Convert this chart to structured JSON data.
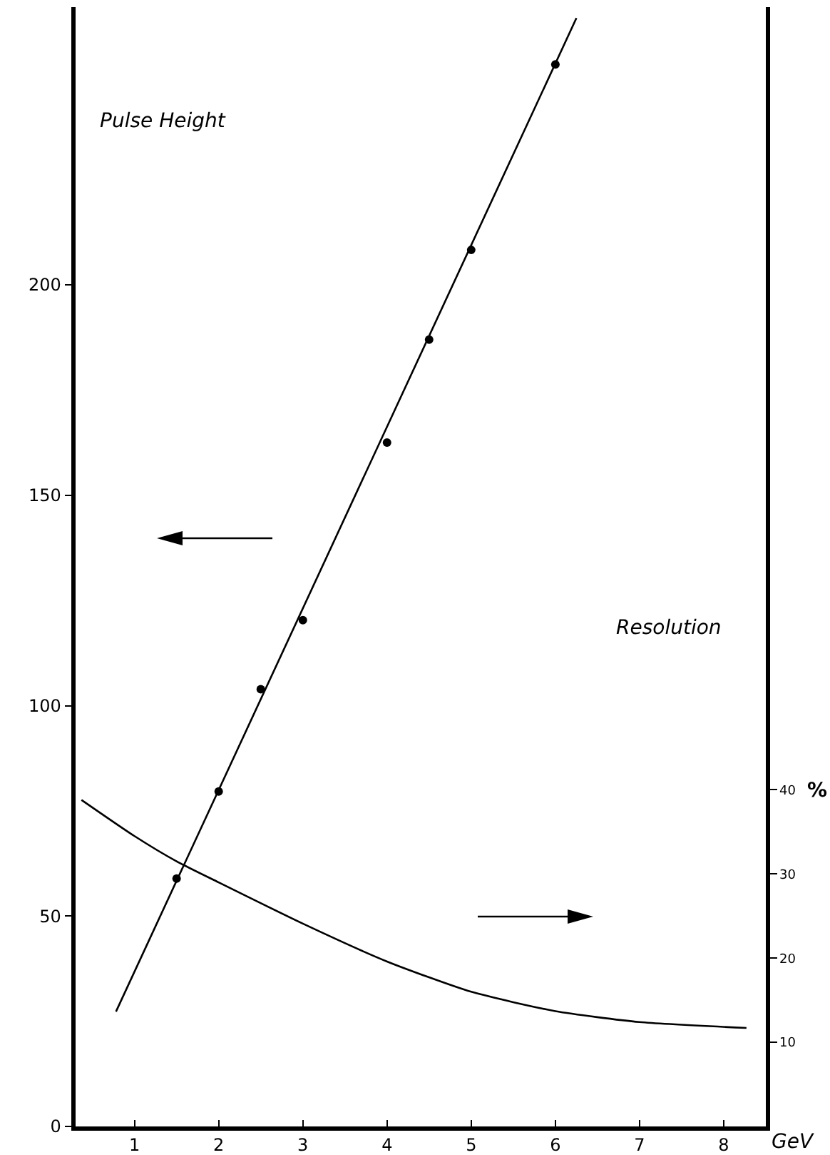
{
  "chart_data": {
    "type": "scatter",
    "xlabel": "GeV",
    "ylabel": "Pulse Height",
    "y2label": "Resolution",
    "annotations": [
      "%"
    ],
    "xlim": [
      0.3,
      8.5
    ],
    "xticks": [
      1,
      2,
      3,
      4,
      5,
      6,
      7,
      8
    ],
    "ylim": [
      0,
      266
    ],
    "yticks": [
      0,
      50,
      100,
      150,
      200
    ],
    "y2lim": [
      0,
      133
    ],
    "y2ticks": [
      10,
      20,
      30,
      40
    ],
    "line_style": "solid",
    "series": [
      {
        "marker": "circle",
        "color": "#000000",
        "x": [
          1.5,
          2,
          2.5,
          3,
          4,
          4.5,
          5,
          6
        ],
        "values": [
          58.9,
          79.6,
          103.9,
          120.3,
          162.5,
          187,
          208.3,
          252.4
        ]
      },
      {
        "type": "line",
        "marker": "none",
        "color": "#000000",
        "x": [
          0.78,
          6.25
        ],
        "values": [
          27.3,
          263.4
        ]
      },
      {
        "type": "line",
        "marker": "none",
        "axis": "y2",
        "color": "#000000",
        "x": [
          0.37,
          1,
          1.5,
          2,
          3,
          4,
          5,
          6,
          7,
          8.27
        ],
        "values": [
          38.8,
          34.5,
          31.5,
          29.0,
          24.1,
          19.6,
          16.0,
          13.7,
          12.4,
          11.7
        ]
      }
    ]
  }
}
